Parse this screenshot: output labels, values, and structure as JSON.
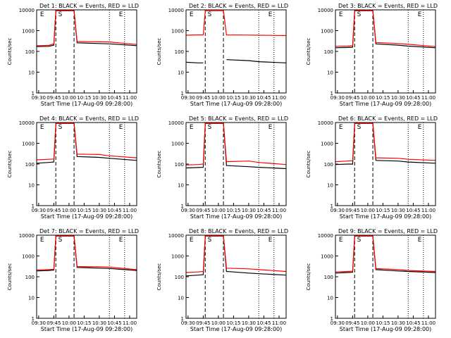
{
  "figure": {
    "xlabel": "Start Time (17-Aug-09 09:28:00)",
    "ylabel": "Counts/sec"
  },
  "chart_data": {
    "type": "line",
    "y_scale": "log",
    "ylim": [
      1,
      10000
    ],
    "y_ticks": [
      1,
      10,
      100,
      1000,
      10000
    ],
    "y_tick_labels": [
      "1",
      "10",
      "100",
      "1000",
      "10000"
    ],
    "x_ticks": [
      "09:30",
      "09:45",
      "10:00",
      "10:15",
      "10:30",
      "10:45",
      "11:00"
    ],
    "xlim": [
      "09:28",
      "11:07"
    ],
    "colors": {
      "events": "#000000",
      "lld": "#ff0000",
      "axes": "#000000"
    },
    "panels": [
      {
        "title": "Det 1: BLACK = Events, RED = LLD",
        "markers": [
          {
            "label": "E",
            "time": "09:30"
          },
          {
            "label": "S",
            "time": "09:48"
          },
          {
            "label": "E",
            "time": "10:48"
          }
        ],
        "dashed_lines": [
          "09:47",
          "10:05"
        ],
        "dotted_lines": [
          "10:40",
          "10:55"
        ],
        "events": [
          [
            "09:28",
            170
          ],
          [
            "09:40",
            175
          ],
          [
            "09:45",
            200
          ],
          [
            "09:47",
            9000
          ],
          [
            "10:05",
            9000
          ],
          [
            "10:08",
            260
          ],
          [
            "10:30",
            240
          ],
          [
            "10:40",
            230
          ],
          [
            "11:07",
            190
          ]
        ],
        "lld": [
          [
            "09:28",
            190
          ],
          [
            "09:40",
            195
          ],
          [
            "09:45",
            230
          ],
          [
            "09:47",
            9000
          ],
          [
            "10:05",
            9000
          ],
          [
            "10:08",
            300
          ],
          [
            "10:30",
            290
          ],
          [
            "10:40",
            285
          ],
          [
            "11:07",
            215
          ]
        ]
      },
      {
        "title": "Det 2: BLACK = Events, RED = LLD",
        "markers": [
          {
            "label": "E",
            "time": "09:30"
          },
          {
            "label": "S",
            "time": "09:48"
          },
          {
            "label": "E",
            "time": "10:48"
          }
        ],
        "dashed_lines": [
          "09:47",
          "10:05"
        ],
        "dotted_lines": [
          "10:40",
          "10:55"
        ],
        "events": [
          [
            "09:28",
            30
          ],
          [
            "09:40",
            28
          ],
          [
            "09:45",
            28
          ],
          [
            "09:47",
            null
          ],
          [
            "10:05",
            null
          ],
          [
            "10:08",
            40
          ],
          [
            "10:30",
            36
          ],
          [
            "10:40",
            32
          ],
          [
            "11:07",
            28
          ]
        ],
        "lld": [
          [
            "09:28",
            600
          ],
          [
            "09:40",
            620
          ],
          [
            "09:45",
            620
          ],
          [
            "09:47",
            9000
          ],
          [
            "10:05",
            9000
          ],
          [
            "10:08",
            620
          ],
          [
            "10:30",
            610
          ],
          [
            "10:40",
            600
          ],
          [
            "11:07",
            580
          ]
        ]
      },
      {
        "title": "Det 3: BLACK = Events, RED = LLD",
        "markers": [
          {
            "label": "E",
            "time": "09:30"
          },
          {
            "label": "S",
            "time": "09:48"
          },
          {
            "label": "E",
            "time": "10:48"
          }
        ],
        "dashed_lines": [
          "09:47",
          "10:05"
        ],
        "dotted_lines": [
          "10:40",
          "10:55"
        ],
        "events": [
          [
            "09:28",
            150
          ],
          [
            "09:40",
            155
          ],
          [
            "09:45",
            160
          ],
          [
            "09:47",
            9000
          ],
          [
            "10:05",
            9000
          ],
          [
            "10:08",
            230
          ],
          [
            "10:30",
            200
          ],
          [
            "10:40",
            180
          ],
          [
            "11:07",
            150
          ]
        ],
        "lld": [
          [
            "09:28",
            175
          ],
          [
            "09:40",
            180
          ],
          [
            "09:45",
            190
          ],
          [
            "09:47",
            9000
          ],
          [
            "10:05",
            9000
          ],
          [
            "10:08",
            270
          ],
          [
            "10:30",
            240
          ],
          [
            "10:40",
            220
          ],
          [
            "11:07",
            170
          ]
        ]
      },
      {
        "title": "Det 4: BLACK = Events, RED = LLD",
        "markers": [
          {
            "label": "E",
            "time": "09:30"
          },
          {
            "label": "S",
            "time": "09:48"
          },
          {
            "label": "E",
            "time": "10:48"
          }
        ],
        "dashed_lines": [
          "09:47",
          "10:05"
        ],
        "dotted_lines": [
          "10:40",
          "10:55"
        ],
        "events": [
          [
            "09:28",
            110
          ],
          [
            "09:40",
            120
          ],
          [
            "09:45",
            125
          ],
          [
            "09:47",
            9000
          ],
          [
            "10:05",
            9000
          ],
          [
            "10:08",
            230
          ],
          [
            "10:30",
            210
          ],
          [
            "10:40",
            190
          ],
          [
            "11:07",
            150
          ]
        ],
        "lld": [
          [
            "09:28",
            160
          ],
          [
            "09:40",
            170
          ],
          [
            "09:45",
            175
          ],
          [
            "09:47",
            9000
          ],
          [
            "10:05",
            9000
          ],
          [
            "10:08",
            300
          ],
          [
            "10:30",
            290
          ],
          [
            "10:40",
            250
          ],
          [
            "11:07",
            200
          ]
        ]
      },
      {
        "title": "Det 5: BLACK = Events, RED = LLD",
        "markers": [
          {
            "label": "E",
            "time": "09:30"
          },
          {
            "label": "S",
            "time": "09:48"
          },
          {
            "label": "E",
            "time": "10:48"
          }
        ],
        "dashed_lines": [
          "09:47",
          "10:05"
        ],
        "dotted_lines": [
          "10:40",
          "10:55"
        ],
        "events": [
          [
            "09:28",
            65
          ],
          [
            "09:40",
            68
          ],
          [
            "09:45",
            70
          ],
          [
            "09:47",
            9000
          ],
          [
            "10:05",
            9000
          ],
          [
            "10:08",
            85
          ],
          [
            "10:30",
            75
          ],
          [
            "10:40",
            70
          ],
          [
            "11:07",
            60
          ]
        ],
        "lld": [
          [
            "09:28",
            90
          ],
          [
            "09:40",
            95
          ],
          [
            "09:45",
            100
          ],
          [
            "09:47",
            9000
          ],
          [
            "10:05",
            9000
          ],
          [
            "10:08",
            130
          ],
          [
            "10:30",
            140
          ],
          [
            "10:40",
            120
          ],
          [
            "11:07",
            95
          ]
        ]
      },
      {
        "title": "Det 6: BLACK = Events, RED = LLD",
        "markers": [
          {
            "label": "E",
            "time": "09:30"
          },
          {
            "label": "S",
            "time": "09:48"
          },
          {
            "label": "E",
            "time": "10:48"
          }
        ],
        "dashed_lines": [
          "09:47",
          "10:05"
        ],
        "dotted_lines": [
          "10:40",
          "10:55"
        ],
        "events": [
          [
            "09:28",
            95
          ],
          [
            "09:40",
            100
          ],
          [
            "09:45",
            100
          ],
          [
            "09:47",
            9000
          ],
          [
            "10:05",
            9000
          ],
          [
            "10:08",
            150
          ],
          [
            "10:30",
            140
          ],
          [
            "10:40",
            125
          ],
          [
            "11:07",
            110
          ]
        ],
        "lld": [
          [
            "09:28",
            130
          ],
          [
            "09:40",
            140
          ],
          [
            "09:45",
            145
          ],
          [
            "09:47",
            9000
          ],
          [
            "10:05",
            9000
          ],
          [
            "10:08",
            200
          ],
          [
            "10:30",
            190
          ],
          [
            "10:40",
            170
          ],
          [
            "11:07",
            150
          ]
        ]
      },
      {
        "title": "Det 7: BLACK = Events, RED = LLD",
        "markers": [
          {
            "label": "E",
            "time": "09:30"
          },
          {
            "label": "S",
            "time": "09:48"
          },
          {
            "label": "E",
            "time": "10:48"
          }
        ],
        "dashed_lines": [
          "09:47",
          "10:05"
        ],
        "dotted_lines": [
          "10:40",
          "10:55"
        ],
        "events": [
          [
            "09:28",
            190
          ],
          [
            "09:40",
            200
          ],
          [
            "09:45",
            210
          ],
          [
            "09:47",
            9000
          ],
          [
            "10:05",
            9000
          ],
          [
            "10:08",
            280
          ],
          [
            "10:30",
            260
          ],
          [
            "10:40",
            250
          ],
          [
            "11:07",
            200
          ]
        ],
        "lld": [
          [
            "09:28",
            210
          ],
          [
            "09:40",
            220
          ],
          [
            "09:45",
            230
          ],
          [
            "09:47",
            9000
          ],
          [
            "10:05",
            9000
          ],
          [
            "10:08",
            310
          ],
          [
            "10:30",
            300
          ],
          [
            "10:40",
            290
          ],
          [
            "11:07",
            220
          ]
        ]
      },
      {
        "title": "Det 8: BLACK = Events, RED = LLD",
        "markers": [
          {
            "label": "E",
            "time": "09:30"
          },
          {
            "label": "S",
            "time": "09:48"
          },
          {
            "label": "E",
            "time": "10:48"
          }
        ],
        "dashed_lines": [
          "09:47",
          "10:05"
        ],
        "dotted_lines": [
          "10:40",
          "10:55"
        ],
        "events": [
          [
            "09:28",
            110
          ],
          [
            "09:40",
            120
          ],
          [
            "09:45",
            125
          ],
          [
            "09:47",
            9000
          ],
          [
            "10:05",
            9000
          ],
          [
            "10:08",
            180
          ],
          [
            "10:30",
            150
          ],
          [
            "10:40",
            140
          ],
          [
            "11:07",
            120
          ]
        ],
        "lld": [
          [
            "09:28",
            160
          ],
          [
            "09:40",
            170
          ],
          [
            "09:45",
            180
          ],
          [
            "09:47",
            9000
          ],
          [
            "10:05",
            9000
          ],
          [
            "10:08",
            260
          ],
          [
            "10:30",
            240
          ],
          [
            "10:40",
            220
          ],
          [
            "11:07",
            180
          ]
        ]
      },
      {
        "title": "Det 9: BLACK = Events, RED = LLD",
        "markers": [
          {
            "label": "E",
            "time": "09:30"
          },
          {
            "label": "S",
            "time": "09:48"
          },
          {
            "label": "E",
            "time": "10:48"
          }
        ],
        "dashed_lines": [
          "09:47",
          "10:05"
        ],
        "dotted_lines": [
          "10:40",
          "10:55"
        ],
        "events": [
          [
            "09:28",
            150
          ],
          [
            "09:40",
            160
          ],
          [
            "09:45",
            165
          ],
          [
            "09:47",
            9000
          ],
          [
            "10:05",
            9000
          ],
          [
            "10:08",
            220
          ],
          [
            "10:30",
            190
          ],
          [
            "10:40",
            180
          ],
          [
            "11:07",
            160
          ]
        ],
        "lld": [
          [
            "09:28",
            170
          ],
          [
            "09:40",
            180
          ],
          [
            "09:45",
            185
          ],
          [
            "09:47",
            9000
          ],
          [
            "10:05",
            9000
          ],
          [
            "10:08",
            250
          ],
          [
            "10:30",
            220
          ],
          [
            "10:40",
            200
          ],
          [
            "11:07",
            180
          ]
        ]
      }
    ]
  }
}
